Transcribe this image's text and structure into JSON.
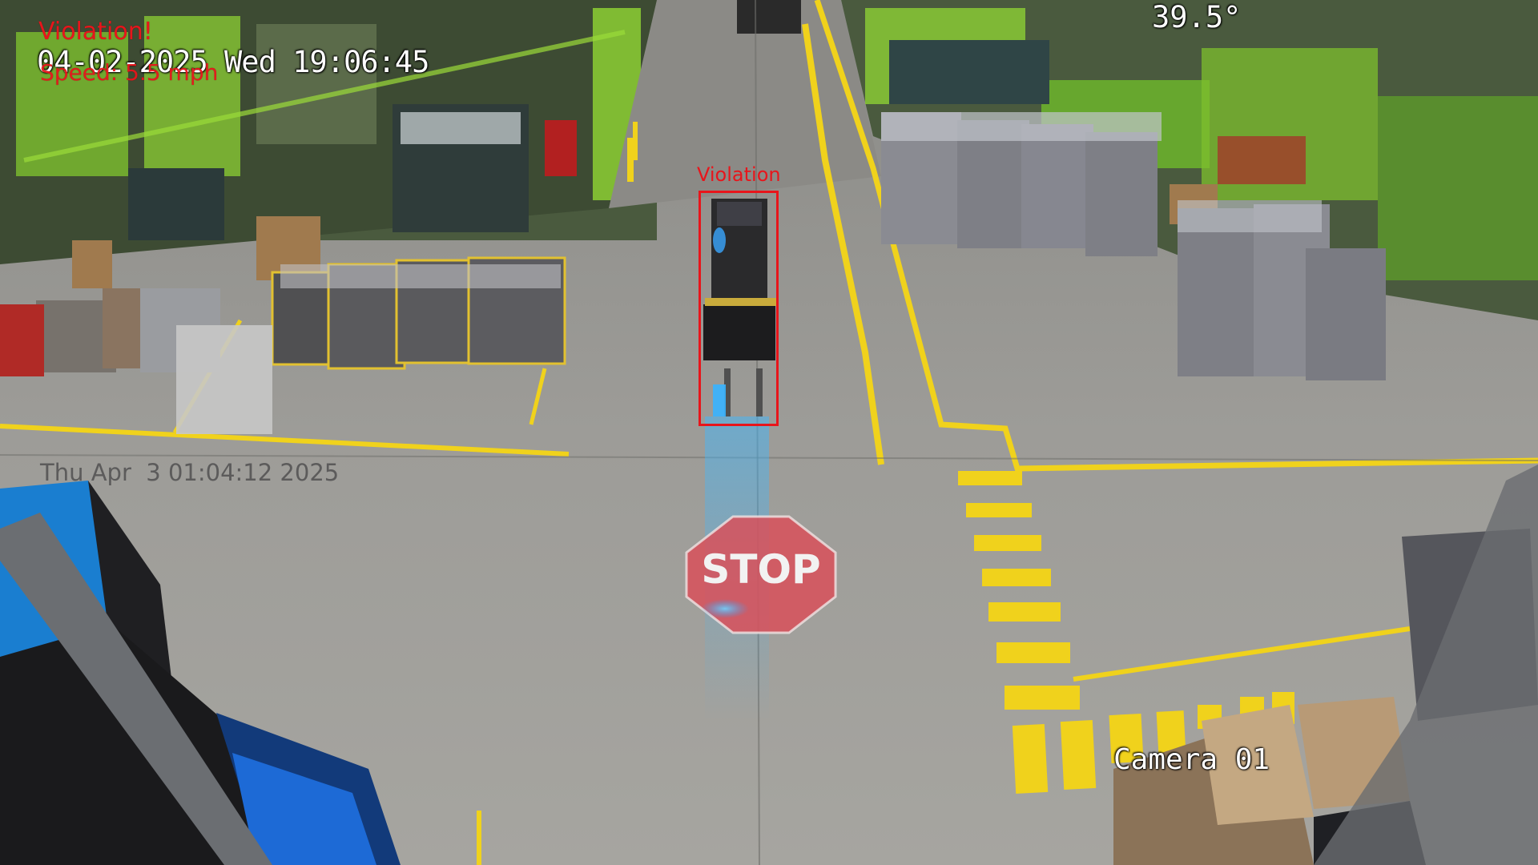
{
  "camera": {
    "name": "Camera 01",
    "temperature": "39.5°",
    "datetime": "04-02-2025 Wed 19:06:45",
    "secondary_timestamp": "Thu Apr  3 01:04:12 2025"
  },
  "alerts": {
    "violation_text": "Violation!",
    "speed_text": "Speed: 5.5 mph"
  },
  "detection": {
    "label": "Violation",
    "object": "forklift"
  },
  "floor_marking": {
    "text": "STOP"
  },
  "colors": {
    "alert_red": "#e8151b",
    "floor_yellow": "#f0d21c",
    "osd_white": "#ffffff"
  }
}
